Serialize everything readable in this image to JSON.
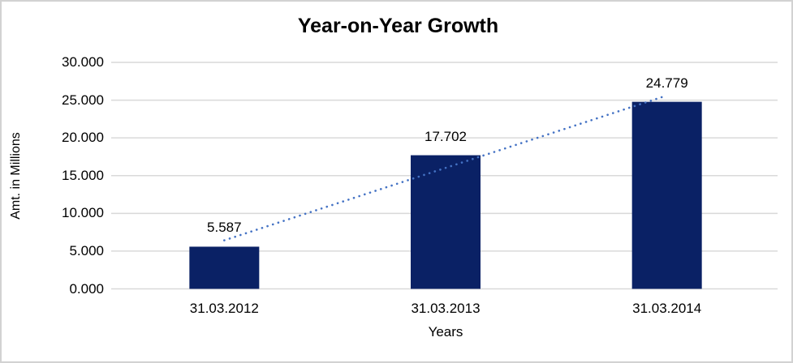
{
  "window": {
    "background_color": "#ffffff",
    "border_color": "#d2d2d2"
  },
  "chart_data": {
    "type": "bar",
    "title": "Year-on-Year Growth",
    "xlabel": "Years",
    "ylabel": "Amt. in Millions",
    "categories": [
      "31.03.2012",
      "31.03.2013",
      "31.03.2014"
    ],
    "values": [
      5.587,
      17.702,
      24.779
    ],
    "value_labels": [
      "5.587",
      "17.702",
      "24.779"
    ],
    "ylim": [
      0,
      30
    ],
    "y_tick_values": [
      0,
      5,
      10,
      15,
      20,
      25,
      30
    ],
    "y_tick_labels": [
      "0.000",
      "5.000",
      "10.000",
      "15.000",
      "20.000",
      "25.000",
      "30.000"
    ],
    "grid": "horizontal",
    "legend": "none",
    "bar_color": "#0a2165",
    "gridline_color": "#d9d9d9",
    "label_color": "#000000",
    "trendline": {
      "type": "linear",
      "style": "dotted",
      "color": "#4472c4",
      "start_value": 6.43,
      "end_value": 25.62
    }
  }
}
